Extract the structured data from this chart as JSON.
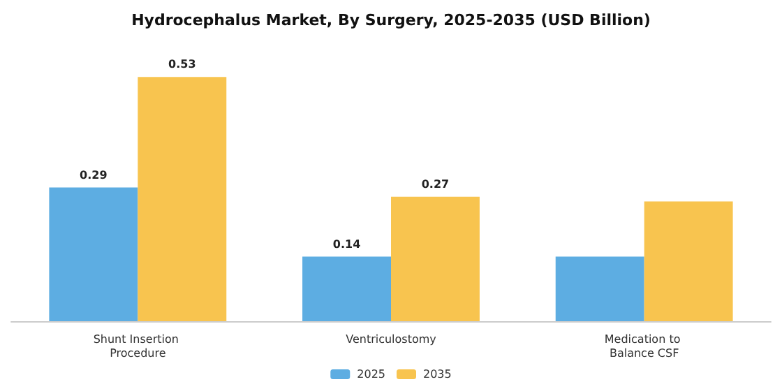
{
  "chart_data": {
    "type": "bar",
    "title": "Hydrocephalus Market, By Surgery, 2025-2035 (USD Billion)",
    "categories": [
      "Shunt Insertion Procedure",
      "Ventriculostomy",
      "Medication to Balance CSF"
    ],
    "series": [
      {
        "name": "2025",
        "color": "#5dade2",
        "values": [
          0.29,
          0.14,
          0.14
        ],
        "value_labels": [
          "0.29",
          "0.14",
          null
        ]
      },
      {
        "name": "2035",
        "color": "#f8c44f",
        "values": [
          0.53,
          0.27,
          0.26
        ],
        "value_labels": [
          "0.53",
          "0.27",
          null
        ]
      }
    ],
    "legend": "bottom"
  }
}
